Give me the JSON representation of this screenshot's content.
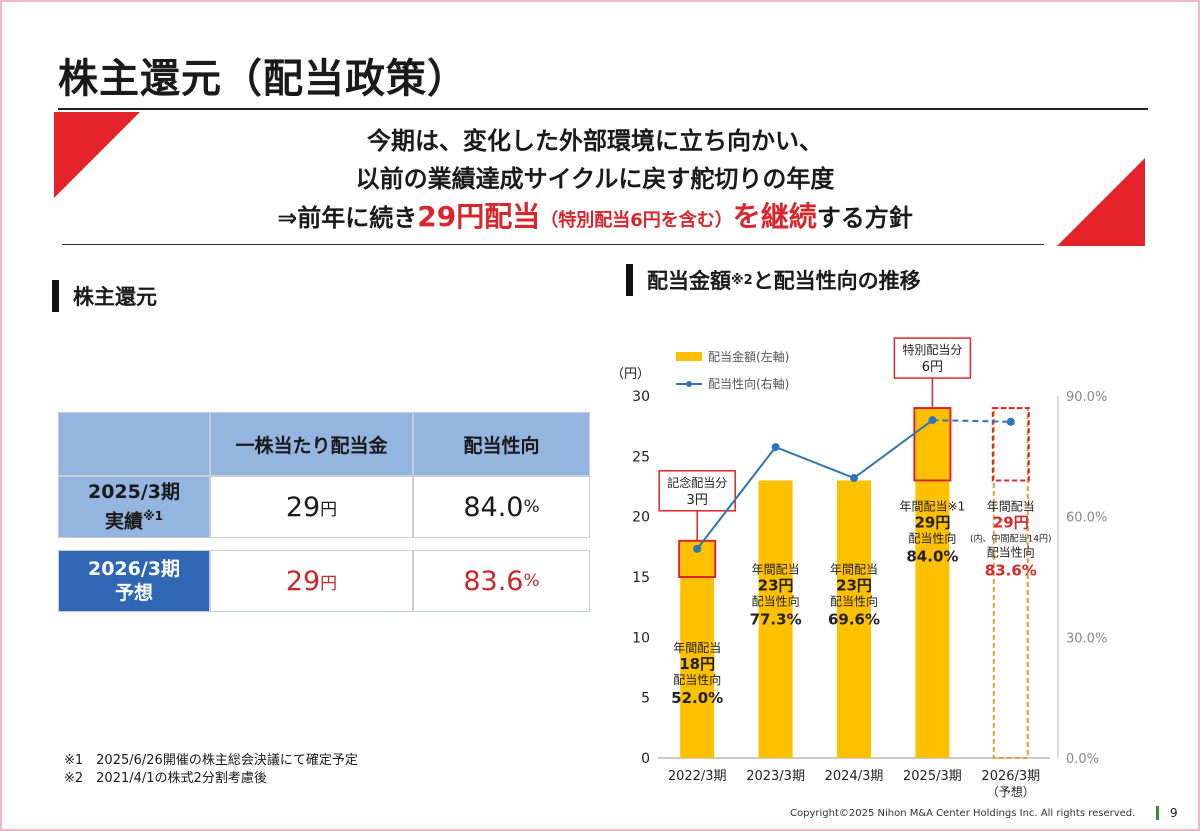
{
  "title": "株主還元（配当政策）",
  "banner": {
    "line1": "今期は、変化した外部環境に立ち向かい、",
    "line2": "以前の業績達成サイクルに戻す舵切りの年度",
    "line3_pre": "⇒前年に続き",
    "line3_red": "29円配当",
    "line3_red_small": "（特別配当6円を含む）",
    "line3_red2": "を継続",
    "line3_post": "する方針"
  },
  "left_section": {
    "heading": "株主還元"
  },
  "right_section": {
    "heading": "配当金額",
    "heading_sup": "※2",
    "heading_post": "と配当性向の推移"
  },
  "table": {
    "headers": [
      "一株当たり配当金",
      "配当性向"
    ],
    "row1": {
      "label1": "2025/3期",
      "label2": "実績",
      "label2_sup": "※1",
      "dividend": "29",
      "dividend_unit": "円",
      "payout": "84.0",
      "payout_unit": "%"
    },
    "row2": {
      "label1": "2026/3期",
      "label2": "予想",
      "dividend": "29",
      "dividend_unit": "円",
      "payout": "83.6",
      "payout_unit": "%"
    }
  },
  "notes": {
    "n1": "※1　2025/6/26開催の株主総会決議にて確定予定",
    "n2": "※2　2021/4/1の株式2分割考慮後"
  },
  "chart_data": {
    "type": "bar",
    "categories": [
      "2022/3期",
      "2023/3期",
      "2024/3期",
      "2025/3期",
      "2026/3期"
    ],
    "category_sub": [
      "",
      "",
      "",
      "",
      "（予想）"
    ],
    "y_unit_label": "（円）",
    "ylim": [
      0,
      30
    ],
    "y_ticks": [
      0,
      5,
      10,
      15,
      20,
      25,
      30
    ],
    "y2lim": [
      0,
      90
    ],
    "y2_ticks": [
      "0.0%",
      "30.0%",
      "60.0%",
      "90.0%"
    ],
    "legend": {
      "bar": "配当金額(左軸)",
      "line": "配当性向(右軸)",
      "position": "top-left"
    },
    "series": [
      {
        "name": "配当金額(左軸)",
        "axis": "left",
        "values": [
          18,
          23,
          23,
          29,
          29
        ]
      },
      {
        "name": "配当性向(右軸)",
        "axis": "right",
        "values": [
          52.0,
          77.3,
          69.6,
          84.0,
          83.6
        ]
      }
    ],
    "highlight_segments": [
      {
        "index": 0,
        "from": 15,
        "to": 18,
        "callout_line1": "記念配当分",
        "callout_line2": "3円"
      },
      {
        "index": 3,
        "from": 23,
        "to": 29,
        "callout_line1": "特別配当分",
        "callout_line2": "6円"
      }
    ],
    "bar_labels": [
      {
        "l1": "年間配当",
        "l2": "18円",
        "l3": "配当性向",
        "l4": "52.0%"
      },
      {
        "l1": "年間配当",
        "l2": "23円",
        "l3": "配当性向",
        "l4": "77.3%"
      },
      {
        "l1": "年間配当",
        "l2": "23円",
        "l3": "配当性向",
        "l4": "69.6%"
      },
      {
        "l1": "年間配当",
        "l1_sup": "※1",
        "l2": "29円",
        "l3": "配当性向",
        "l4": "84.0%"
      },
      {
        "l1": "年間配当",
        "l2": "29円",
        "l2b": "(内、中間配当14円)",
        "l3": "配当性向",
        "l4": "83.6%"
      }
    ],
    "colors": {
      "bar": "#ffc000",
      "line": "#2e75b6",
      "highlight": "#d9262c",
      "forecast": "#e0a030"
    },
    "grid": false
  },
  "footer": {
    "copyright": "Copyright©2025 Nihon M&A Center Holdings Inc. All rights reserved.",
    "page": "9"
  }
}
